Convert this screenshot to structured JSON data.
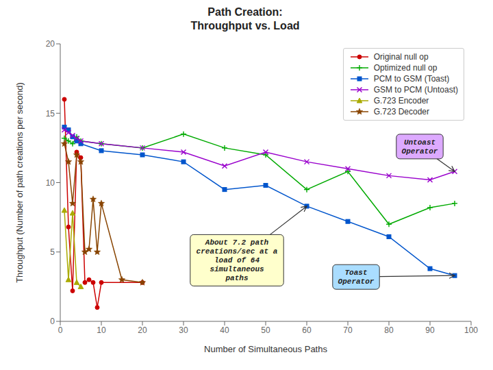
{
  "chart_data": {
    "type": "line",
    "title": "Path Creation:\nThroughput vs. Load",
    "xlabel": "Number of Simultaneous Paths",
    "ylabel": "Throughput (Number of path creations per second)",
    "xlim": [
      0,
      100
    ],
    "ylim": [
      0,
      20
    ],
    "xticks": [
      0,
      10,
      20,
      30,
      40,
      50,
      60,
      70,
      80,
      90,
      100
    ],
    "yticks": [
      0,
      5,
      10,
      15,
      20
    ],
    "grid": false,
    "legend": "upper right",
    "series": [
      {
        "name": "Original null op",
        "color": "#cc0000",
        "marker": "circle",
        "x": [
          1,
          2,
          3,
          4,
          5,
          6,
          7,
          8,
          9,
          10,
          20
        ],
        "values": [
          16.0,
          6.8,
          2.2,
          12.2,
          11.8,
          2.8,
          3.0,
          2.8,
          1.0,
          2.8,
          2.8
        ]
      },
      {
        "name": "Optimized null op",
        "color": "#00aa00",
        "marker": "plus",
        "x": [
          1,
          2,
          3,
          4,
          5,
          10,
          20,
          30,
          40,
          50,
          60,
          70,
          80,
          90,
          96
        ],
        "values": [
          13.2,
          13.0,
          12.8,
          13.3,
          13.0,
          12.8,
          12.5,
          13.5,
          12.5,
          12.0,
          9.5,
          10.8,
          7.0,
          8.2,
          8.5
        ]
      },
      {
        "name": "PCM to GSM (Toast)",
        "color": "#0055cc",
        "marker": "square",
        "x": [
          1,
          2,
          3,
          4,
          5,
          10,
          20,
          30,
          40,
          50,
          60,
          70,
          80,
          90,
          96
        ],
        "values": [
          14.0,
          13.8,
          13.3,
          13.0,
          12.8,
          12.3,
          12.0,
          11.5,
          9.5,
          9.8,
          8.3,
          7.2,
          6.1,
          3.8,
          3.3
        ]
      },
      {
        "name": "GSM to PCM (Untoast)",
        "color": "#9900cc",
        "marker": "cross",
        "x": [
          1,
          2,
          3,
          4,
          5,
          10,
          20,
          30,
          40,
          50,
          60,
          70,
          80,
          90,
          96
        ],
        "values": [
          13.8,
          13.6,
          13.4,
          13.2,
          13.0,
          12.8,
          12.5,
          12.2,
          11.2,
          12.2,
          11.5,
          11.0,
          10.5,
          10.2,
          10.8
        ]
      },
      {
        "name": "G.723 Encoder",
        "color": "#aaaa00",
        "marker": "triangle",
        "x": [
          1,
          2,
          3,
          4,
          5
        ],
        "values": [
          8.0,
          3.0,
          7.8,
          2.8,
          2.5
        ]
      },
      {
        "name": "G.723 Decoder",
        "color": "#884400",
        "marker": "star",
        "x": [
          1,
          2,
          3,
          4,
          5,
          6,
          7,
          8,
          9,
          10,
          15,
          20
        ],
        "values": [
          12.8,
          11.5,
          8.5,
          12.0,
          11.5,
          5.0,
          5.2,
          8.8,
          5.0,
          8.5,
          3.0,
          2.8
        ]
      }
    ],
    "annotations": [
      {
        "text": "Untoast\nOperator",
        "x": 96,
        "y": 10.8,
        "color": "#ddaaff"
      },
      {
        "text": "Toast\nOperator",
        "x": 96,
        "y": 3.3,
        "color": "#aaddff"
      },
      {
        "text": "About 7.2 path\ncreations/sec at a\nload of 64\nsimultaneous\npaths",
        "x": 60,
        "y": 8.3,
        "color": "#ffffcc"
      }
    ]
  }
}
